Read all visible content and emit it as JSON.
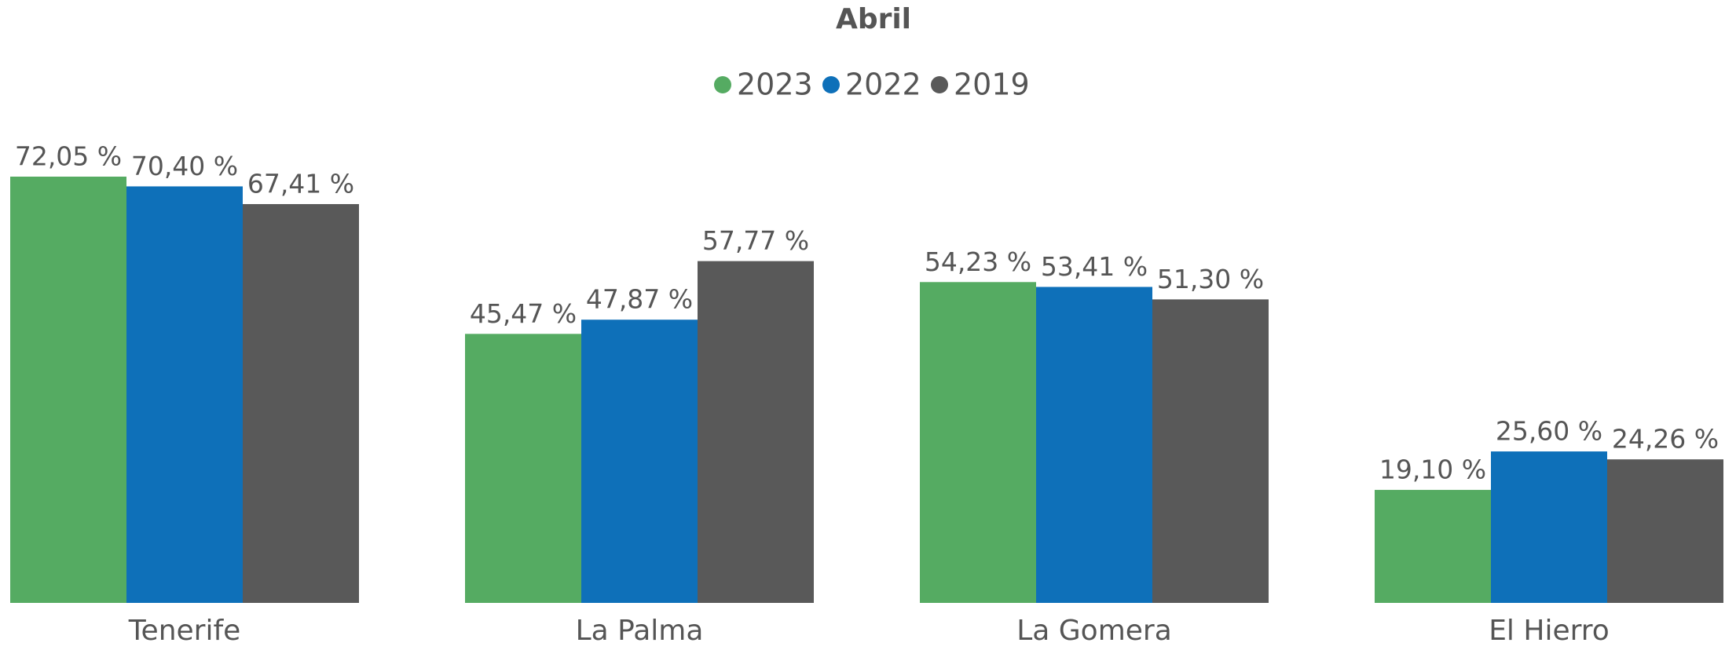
{
  "chart_data": {
    "type": "bar",
    "title": "Abril",
    "categories": [
      "Tenerife",
      "La Palma",
      "La Gomera",
      "El Hierro"
    ],
    "series": [
      {
        "name": "2023",
        "color": "#55ab62",
        "values": [
          72.05,
          45.47,
          54.23,
          19.1
        ],
        "value_labels": [
          "72,05 %",
          "45,47 %",
          "54,23 %",
          "19,10 %"
        ]
      },
      {
        "name": "2022",
        "color": "#0e70b9",
        "values": [
          70.4,
          47.87,
          53.41,
          25.6
        ],
        "value_labels": [
          "70,40 %",
          "47,87 %",
          "53,41 %",
          "25,60 %"
        ]
      },
      {
        "name": "2019",
        "color": "#595959",
        "values": [
          67.41,
          57.77,
          51.3,
          24.26
        ],
        "value_labels": [
          "67,41 %",
          "57,77 %",
          "51,30 %",
          "24,26 %"
        ]
      }
    ],
    "legend": "top"
  }
}
